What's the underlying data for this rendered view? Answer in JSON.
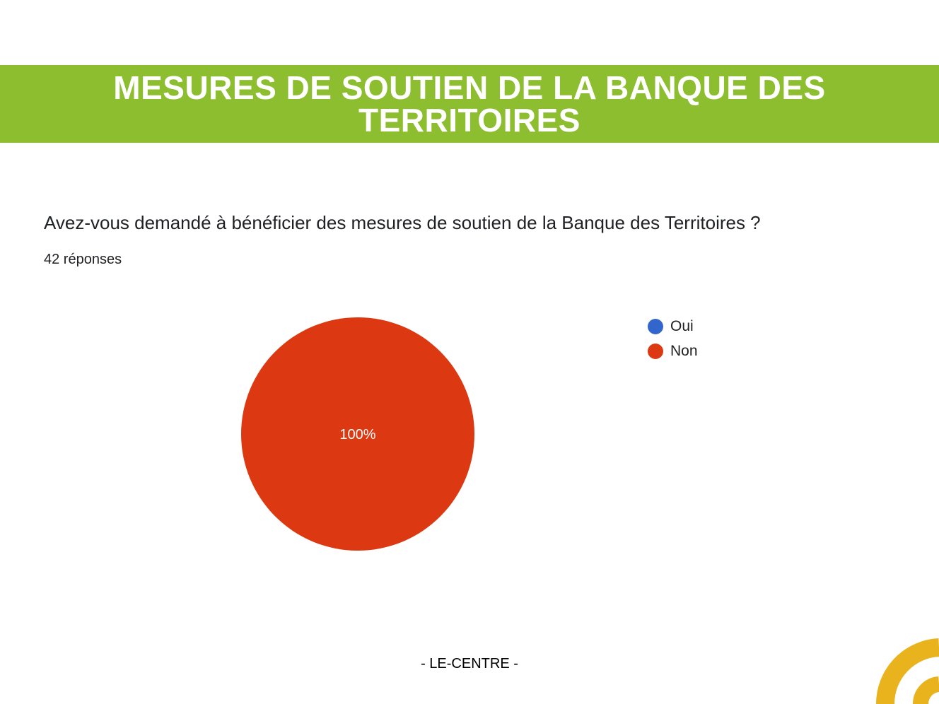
{
  "header": {
    "title_line1": "MESURES DE SOUTIEN DE LA BANQUE DES",
    "title_line2": "TERRITOIRES",
    "color": "#8dbe30"
  },
  "question": "Avez-vous demandé à bénéficier des mesures de soutien de la Banque des Territoires ?",
  "responses": "42 réponses",
  "chart_data": {
    "type": "pie",
    "categories": [
      "Oui",
      "Non"
    ],
    "values": [
      0,
      100
    ],
    "colors": [
      "#3366cc",
      "#dc3912"
    ],
    "slice_labels": [
      "",
      "100%"
    ],
    "legend": "right"
  },
  "footer": "- LE-CENTRE -",
  "decoration_color": "#e9b31e"
}
